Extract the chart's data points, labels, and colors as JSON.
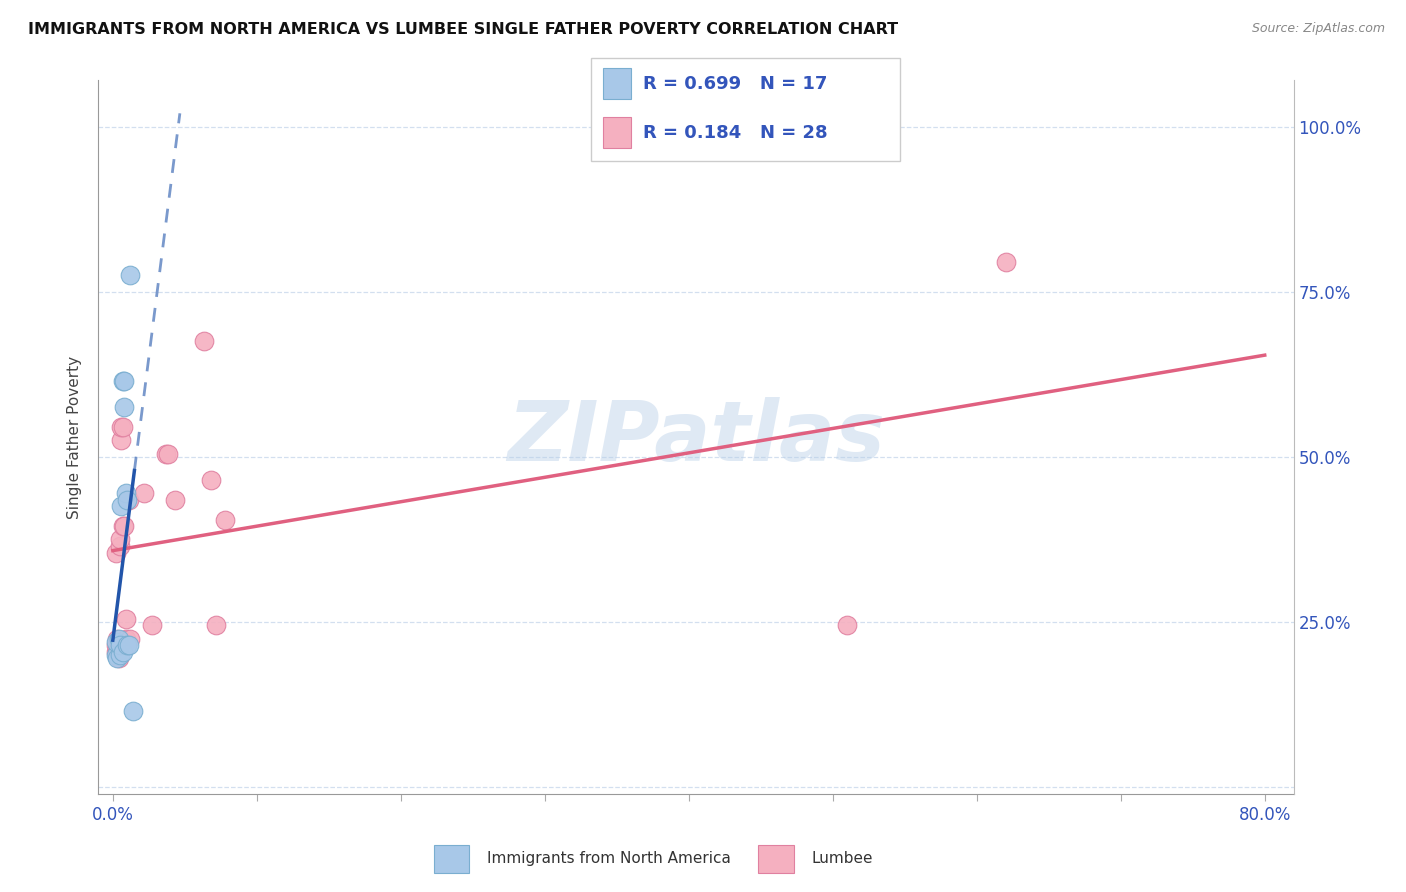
{
  "title": "IMMIGRANTS FROM NORTH AMERICA VS LUMBEE SINGLE FATHER POVERTY CORRELATION CHART",
  "source": "Source: ZipAtlas.com",
  "ylabel": "Single Father Poverty",
  "blue_R": 0.699,
  "blue_N": 17,
  "pink_R": 0.184,
  "pink_N": 28,
  "blue_color": "#a8c8e8",
  "blue_edge_color": "#7aaed0",
  "blue_line_color": "#2255aa",
  "pink_color": "#f5b0c0",
  "pink_edge_color": "#e080a0",
  "pink_line_color": "#e06080",
  "legend_label_blue": "Immigrants from North America",
  "legend_label_pink": "Lumbee",
  "watermark": "ZIPatlas",
  "xlim": [
    0.0,
    0.8
  ],
  "ylim": [
    0.0,
    1.05
  ],
  "x_ticks": [
    0.0,
    0.1,
    0.2,
    0.3,
    0.4,
    0.5,
    0.6,
    0.7,
    0.8
  ],
  "y_ticks": [
    0.0,
    0.25,
    0.5,
    0.75,
    1.0
  ],
  "blue_scatter_x": [
    0.002,
    0.002,
    0.003,
    0.004,
    0.005,
    0.005,
    0.006,
    0.007,
    0.007,
    0.008,
    0.008,
    0.009,
    0.01,
    0.01,
    0.011,
    0.012,
    0.014
  ],
  "blue_scatter_y": [
    0.2,
    0.22,
    0.195,
    0.225,
    0.2,
    0.215,
    0.425,
    0.205,
    0.615,
    0.575,
    0.615,
    0.445,
    0.435,
    0.215,
    0.215,
    0.775,
    0.115
  ],
  "pink_scatter_x": [
    0.002,
    0.002,
    0.002,
    0.003,
    0.003,
    0.004,
    0.005,
    0.005,
    0.006,
    0.006,
    0.007,
    0.007,
    0.008,
    0.009,
    0.009,
    0.011,
    0.012,
    0.022,
    0.027,
    0.037,
    0.038,
    0.043,
    0.063,
    0.068,
    0.072,
    0.078,
    0.51,
    0.62
  ],
  "pink_scatter_y": [
    0.205,
    0.215,
    0.355,
    0.205,
    0.225,
    0.195,
    0.365,
    0.375,
    0.525,
    0.545,
    0.395,
    0.545,
    0.395,
    0.225,
    0.255,
    0.435,
    0.225,
    0.445,
    0.245,
    0.505,
    0.505,
    0.435,
    0.675,
    0.465,
    0.245,
    0.405,
    0.245,
    0.795
  ]
}
